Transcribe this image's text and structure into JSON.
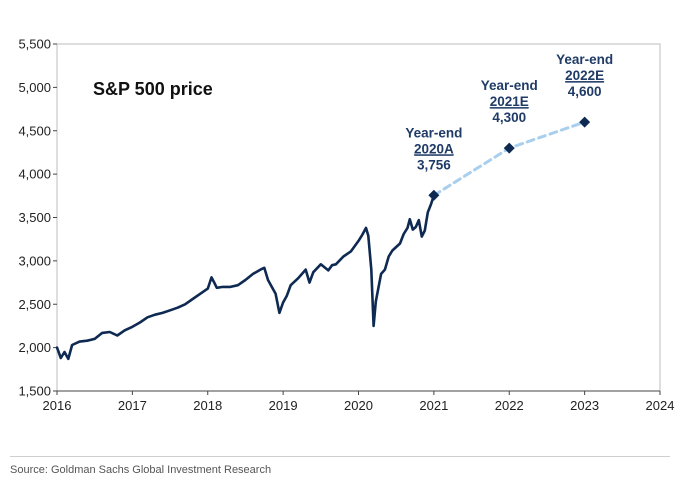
{
  "chart_data": {
    "type": "line",
    "title": "S&P 500 price",
    "xlabel": "",
    "ylabel": "",
    "xlim": [
      2016,
      2024
    ],
    "ylim": [
      1500,
      5500
    ],
    "x_ticks": [
      "2016",
      "2017",
      "2018",
      "2019",
      "2020",
      "2021",
      "2022",
      "2023",
      "2024"
    ],
    "y_ticks": [
      "1,500",
      "2,000",
      "2,500",
      "3,000",
      "3,500",
      "4,000",
      "4,500",
      "5,000",
      "5,500"
    ],
    "grid": false,
    "series": [
      {
        "style": "solid",
        "color": "#0e2a52",
        "x": [
          2016.0,
          2016.05,
          2016.1,
          2016.15,
          2016.2,
          2016.3,
          2016.4,
          2016.5,
          2016.6,
          2016.7,
          2016.8,
          2016.9,
          2017.0,
          2017.1,
          2017.2,
          2017.3,
          2017.4,
          2017.5,
          2017.6,
          2017.7,
          2017.8,
          2017.9,
          2018.0,
          2018.05,
          2018.08,
          2018.12,
          2018.2,
          2018.3,
          2018.4,
          2018.5,
          2018.6,
          2018.7,
          2018.75,
          2018.8,
          2018.85,
          2018.9,
          2018.95,
          2019.0,
          2019.05,
          2019.1,
          2019.2,
          2019.3,
          2019.35,
          2019.4,
          2019.5,
          2019.6,
          2019.65,
          2019.7,
          2019.8,
          2019.9,
          2020.0,
          2020.05,
          2020.1,
          2020.13,
          2020.17,
          2020.2,
          2020.23,
          2020.27,
          2020.3,
          2020.35,
          2020.4,
          2020.45,
          2020.5,
          2020.55,
          2020.6,
          2020.65,
          2020.68,
          2020.72,
          2020.76,
          2020.8,
          2020.84,
          2020.88,
          2020.92,
          2020.96,
          2021.0
        ],
        "y": [
          2000,
          1880,
          1950,
          1870,
          2030,
          2070,
          2080,
          2100,
          2170,
          2180,
          2140,
          2200,
          2240,
          2290,
          2350,
          2380,
          2400,
          2430,
          2460,
          2500,
          2560,
          2620,
          2680,
          2810,
          2760,
          2690,
          2700,
          2700,
          2720,
          2780,
          2850,
          2900,
          2920,
          2780,
          2700,
          2620,
          2400,
          2520,
          2600,
          2720,
          2800,
          2900,
          2750,
          2870,
          2960,
          2890,
          2950,
          2960,
          3050,
          3110,
          3230,
          3300,
          3380,
          3290,
          2900,
          2250,
          2530,
          2720,
          2850,
          2900,
          3050,
          3120,
          3160,
          3200,
          3310,
          3380,
          3480,
          3360,
          3390,
          3470,
          3280,
          3350,
          3560,
          3650,
          3756
        ]
      },
      {
        "style": "dashed",
        "color": "#a9cfee",
        "x": [
          2021,
          2022,
          2023
        ],
        "y": [
          3756,
          4300,
          4600
        ]
      }
    ],
    "annotations": [
      {
        "x": 2021,
        "y": 3756,
        "label": [
          "Year-end",
          "2020A",
          "3,756"
        ]
      },
      {
        "x": 2022,
        "y": 4300,
        "label": [
          "Year-end",
          "2021E",
          "4,300"
        ]
      },
      {
        "x": 2023,
        "y": 4600,
        "label": [
          "Year-end",
          "2022E",
          "4,600"
        ]
      }
    ]
  },
  "footer": {
    "source": "Source: Goldman Sachs Global Investment Research"
  }
}
